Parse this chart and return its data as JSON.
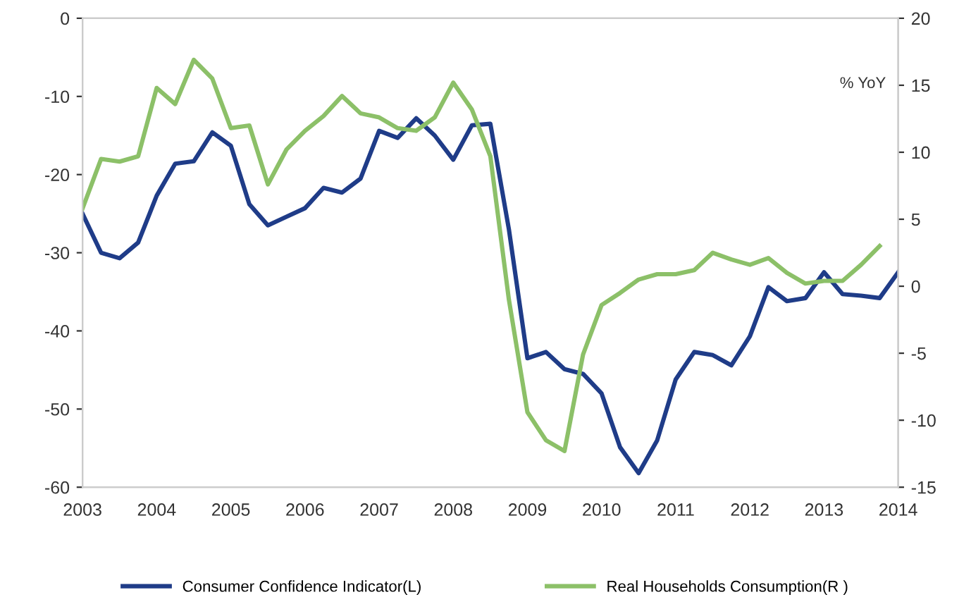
{
  "chart_data": {
    "type": "line",
    "x": [
      2003,
      2003.25,
      2003.5,
      2003.75,
      2004,
      2004.25,
      2004.5,
      2004.75,
      2005,
      2005.25,
      2005.5,
      2005.75,
      2006,
      2006.25,
      2006.5,
      2006.75,
      2007,
      2007.25,
      2007.5,
      2007.75,
      2008,
      2008.25,
      2008.5,
      2008.75,
      2009,
      2009.25,
      2009.5,
      2009.75,
      2010,
      2010.25,
      2010.5,
      2010.75,
      2011,
      2011.25,
      2011.5,
      2011.75,
      2012,
      2012.25,
      2012.5,
      2012.75,
      2013,
      2013.25,
      2013.5,
      2013.75,
      2014
    ],
    "series": [
      {
        "name": "Consumer Confidence Indicator(L)",
        "color": "#1f3c88",
        "values": [
          -25,
          -30,
          -30.7,
          -28.7,
          -22.7,
          -18.6,
          -18.3,
          -14.6,
          -16.3,
          -23.8,
          -26.5,
          -25.4,
          -24.3,
          -21.7,
          -22.3,
          -20.5,
          -14.4,
          -15.3,
          -12.8,
          -15,
          -18.1,
          -13.7,
          -13.5,
          -27,
          -43.5,
          -42.7,
          -44.9,
          -45.5,
          -48,
          -54.9,
          -58.2,
          -54,
          -46.2,
          -42.7,
          -43.1,
          -44.4,
          -40.7,
          -34.4,
          -36.2,
          -35.8,
          -32.5,
          -35.3,
          -35.5,
          -35.8,
          -32.5
        ]
      },
      {
        "name": "Real Households Consumption(R )",
        "color": "#8cc068",
        "axis": "y2",
        "values": [
          5.8,
          9.5,
          9.3,
          9.7,
          14.8,
          13.6,
          16.9,
          15.5,
          11.8,
          12,
          7.6,
          10.2,
          11.6,
          12.7,
          14.2,
          12.9,
          12.6,
          11.8,
          11.6,
          12.6,
          15.2,
          13.2,
          9.7,
          -1,
          -9.4,
          -11.5,
          -12.3,
          -5.1,
          -1.4,
          -0.5,
          0.5,
          0.9,
          0.9,
          1.2,
          2.5,
          2,
          1.6,
          2.1,
          1,
          0.2,
          0.4,
          0.4,
          1.6,
          3,
          null
        ]
      }
    ],
    "xlim": [
      2003,
      2014
    ],
    "xticks": [
      2003,
      2004,
      2005,
      2006,
      2007,
      2008,
      2009,
      2010,
      2011,
      2012,
      2013,
      2014
    ],
    "ylim": [
      -60,
      0
    ],
    "yticks": [
      -60,
      -50,
      -40,
      -30,
      -20,
      -10,
      0
    ],
    "y2lim": [
      -15,
      20
    ],
    "y2ticks": [
      -15,
      -10,
      -5,
      0,
      5,
      10,
      15,
      20
    ],
    "annotations": [
      "% YoY"
    ],
    "legend": "bottom",
    "grid": false,
    "marker": "none",
    "line_style": "solid"
  }
}
